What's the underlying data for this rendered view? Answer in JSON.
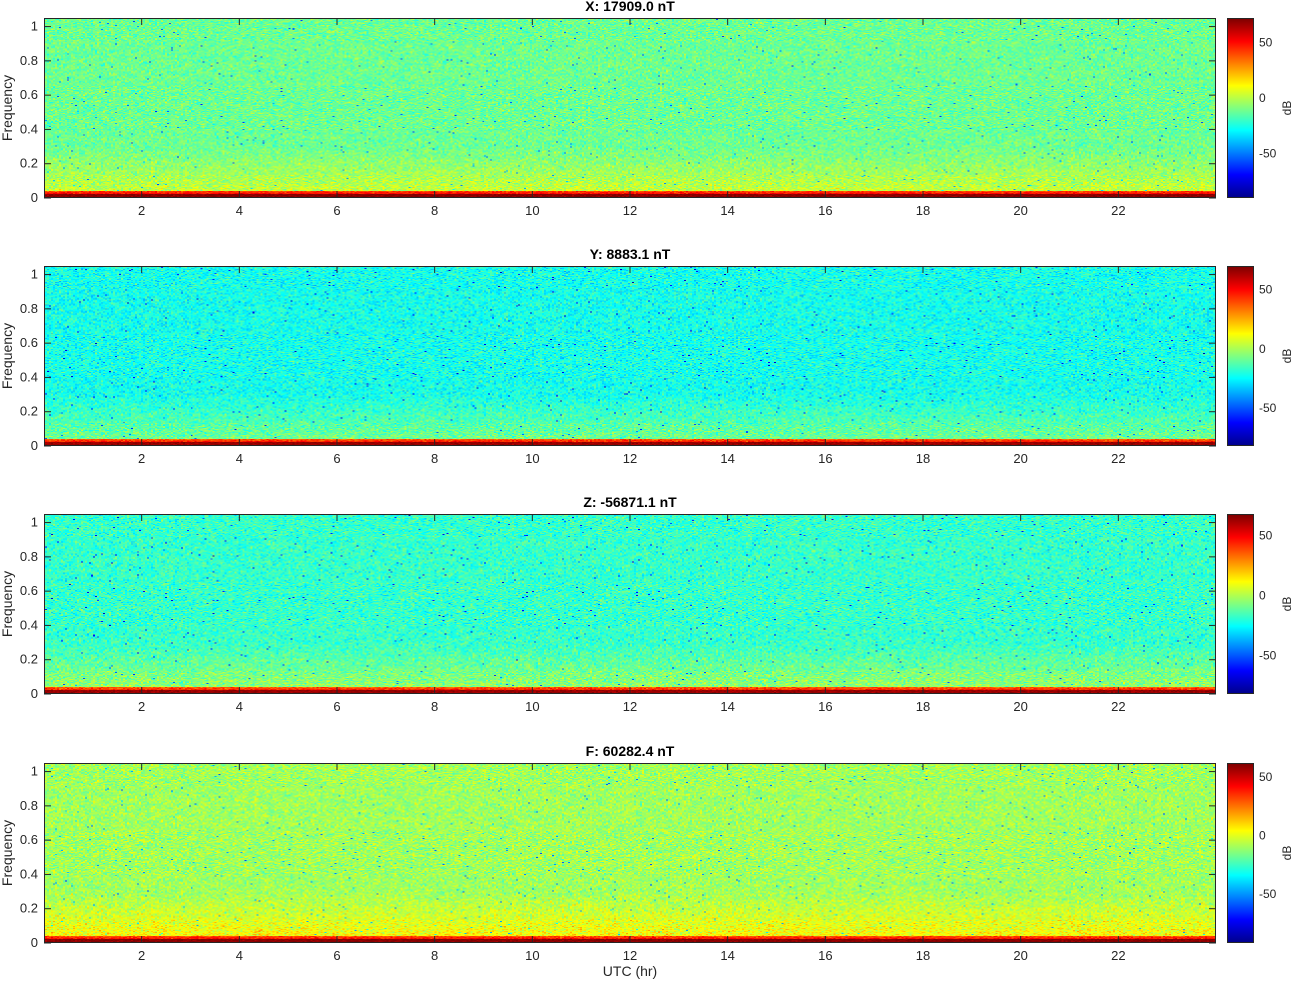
{
  "chart_data": [
    {
      "type": "heatmap",
      "title": "X: 17909.0 nT",
      "ylabel": "Frequency",
      "xlabel": "",
      "colorbar_label": "dB",
      "xlim": [
        0,
        24
      ],
      "ylim": [
        0,
        1.05
      ],
      "clim": [
        -90,
        72
      ],
      "xticks": [
        2,
        4,
        6,
        8,
        10,
        12,
        14,
        16,
        18,
        20,
        22
      ],
      "yticks": [
        0,
        0.2,
        0.4,
        0.6,
        0.8,
        1
      ],
      "cbticks": [
        -50,
        0,
        50
      ],
      "background_level_db": -12,
      "low_freq_level_db": 70
    },
    {
      "type": "heatmap",
      "title": "Y: 8883.1 nT",
      "ylabel": "Frequency",
      "xlabel": "",
      "colorbar_label": "dB",
      "xlim": [
        0,
        24
      ],
      "ylim": [
        0,
        1.05
      ],
      "clim": [
        -82,
        70
      ],
      "xticks": [
        2,
        4,
        6,
        8,
        10,
        12,
        14,
        16,
        18,
        20,
        22
      ],
      "yticks": [
        0,
        0.2,
        0.4,
        0.6,
        0.8,
        1
      ],
      "cbticks": [
        -50,
        0,
        50
      ],
      "background_level_db": -22,
      "low_freq_level_db": 66
    },
    {
      "type": "heatmap",
      "title": "Z: -56871.1 nT",
      "ylabel": "Frequency",
      "xlabel": "",
      "colorbar_label": "dB",
      "xlim": [
        0,
        24
      ],
      "ylim": [
        0,
        1.05
      ],
      "clim": [
        -82,
        68
      ],
      "xticks": [
        2,
        4,
        6,
        8,
        10,
        12,
        14,
        16,
        18,
        20,
        22
      ],
      "yticks": [
        0,
        0.2,
        0.4,
        0.6,
        0.8,
        1
      ],
      "cbticks": [
        -50,
        0,
        50
      ],
      "background_level_db": -18,
      "low_freq_level_db": 64
    },
    {
      "type": "heatmap",
      "title": "F: 60282.4 nT",
      "ylabel": "Frequency",
      "xlabel": "UTC (hr)",
      "colorbar_label": "dB",
      "xlim": [
        0,
        24
      ],
      "ylim": [
        0,
        1.05
      ],
      "clim": [
        -92,
        62
      ],
      "xticks": [
        2,
        4,
        6,
        8,
        10,
        12,
        14,
        16,
        18,
        20,
        22
      ],
      "yticks": [
        0,
        0.2,
        0.4,
        0.6,
        0.8,
        1
      ],
      "cbticks": [
        -50,
        0,
        50
      ],
      "background_level_db": -10,
      "low_freq_level_db": 60
    }
  ],
  "colormap": "jet"
}
